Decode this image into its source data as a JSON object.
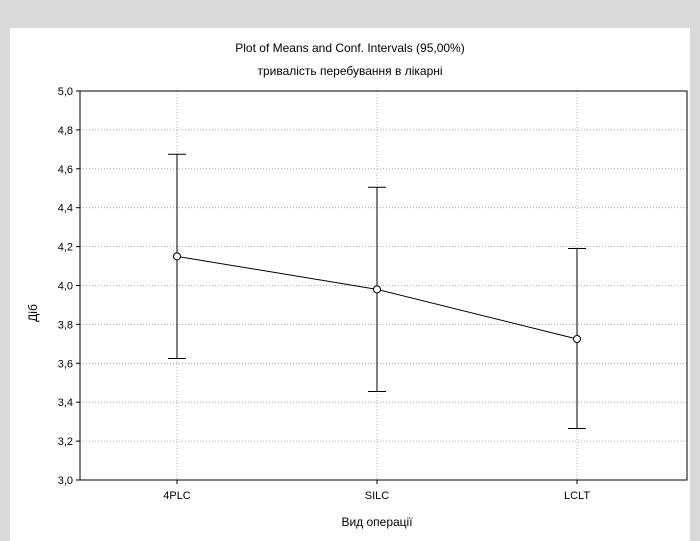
{
  "chart_data": {
    "type": "line",
    "title": "Plot of Means and Conf. Intervals (95,00%)",
    "subtitle": "тривалість перебування в лікарні",
    "xlabel": "Вид операції",
    "ylabel": "Діб",
    "categories": [
      "4PLC",
      "SILC",
      "LCLT"
    ],
    "series": [
      {
        "means": [
          4.15,
          3.98,
          3.725
        ],
        "ci_lower": [
          3.625,
          3.455,
          3.265
        ],
        "ci_upper": [
          4.675,
          4.505,
          4.19
        ]
      }
    ],
    "ylim": [
      3.0,
      5.0
    ],
    "yticks": [
      "3,0",
      "3,2",
      "3,4",
      "3,6",
      "3,8",
      "4,0",
      "4,2",
      "4,4",
      "4,6",
      "4,8",
      "5,0"
    ],
    "grid": true,
    "line_color": "#000000",
    "marker_fill": "#ffffff"
  }
}
